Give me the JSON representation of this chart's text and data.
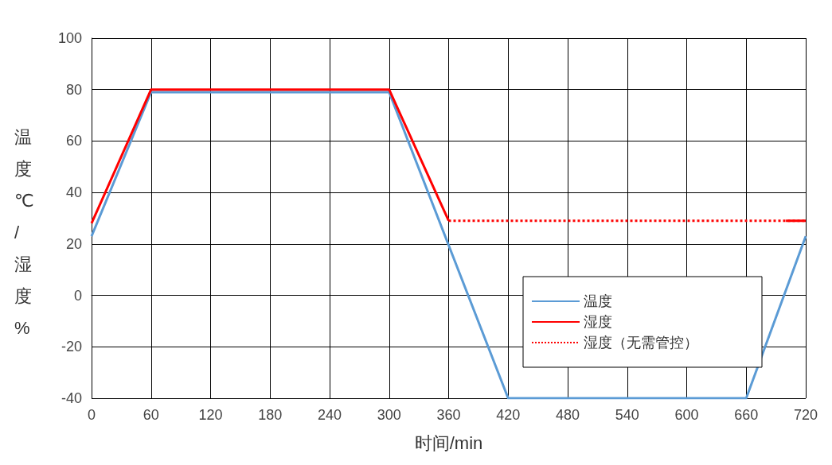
{
  "chart_data": {
    "type": "line",
    "xlabel": "时间/min",
    "ylabel": "温度℃/湿度%",
    "xlim": [
      0,
      720
    ],
    "xticks": [
      0,
      60,
      120,
      180,
      240,
      300,
      360,
      420,
      480,
      540,
      600,
      660,
      720
    ],
    "ylim": [
      -40,
      100
    ],
    "yticks": [
      -40,
      -20,
      0,
      20,
      40,
      60,
      80,
      100
    ],
    "grid": true,
    "legend": "bottom right",
    "marker": "none",
    "series": [
      {
        "name": "温度",
        "color": "#5b9bd5",
        "line_style": "solid",
        "x": [
          0,
          60,
          300,
          420,
          660,
          720
        ],
        "values": [
          23,
          79,
          79,
          -40,
          -40,
          23
        ]
      },
      {
        "name": "湿度",
        "color": "#ff0000",
        "line_style": "solid",
        "x": [
          0,
          60,
          300,
          360,
          530,
          700,
          720
        ],
        "values": [
          28,
          80,
          80,
          29,
          null,
          29,
          29
        ]
      },
      {
        "name": "湿度（无需管控）",
        "color": "#fe0202",
        "line_style": "dotted",
        "x": [
          360,
          720
        ],
        "values": [
          29,
          29
        ]
      }
    ]
  }
}
